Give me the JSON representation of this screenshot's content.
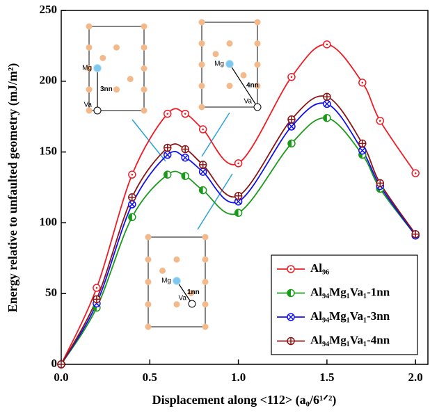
{
  "chart_data": {
    "type": "line",
    "x_label": "Displacement along <112> (a₀/6¹ᐟ²)",
    "y_label": "Energy relative to unfaulted geometry (mJ/m²)",
    "x": [
      0,
      0.2,
      0.4,
      0.6,
      0.7,
      0.8,
      1.0,
      1.3,
      1.5,
      1.7,
      1.8,
      2.0
    ],
    "series": [
      {
        "name": "Al₉₆",
        "color": "#ee1c25",
        "marker": "open-dot",
        "values": [
          0,
          54,
          134,
          177,
          177,
          166,
          142,
          203,
          226,
          199,
          172,
          135
        ]
      },
      {
        "name": "Al₉₄Mg₁Va₁-1nn",
        "color": "#1a9a1a",
        "marker": "half",
        "values": [
          0,
          40,
          104,
          134,
          133,
          123,
          107,
          156,
          174,
          148,
          124,
          91
        ]
      },
      {
        "name": "Al₉₄Mg₁Va₁-3nn",
        "color": "#1010ee",
        "marker": "cross",
        "values": [
          0,
          43,
          113,
          148,
          146,
          136,
          115,
          168,
          184,
          151,
          126,
          91
        ]
      },
      {
        "name": "Al₉₄Mg₁Va₁-4nn",
        "color": "#8b1414",
        "marker": "plus",
        "values": [
          0,
          46,
          118,
          153,
          152,
          141,
          119,
          173,
          189,
          156,
          128,
          92
        ]
      }
    ],
    "xlim": [
      0,
      2.07
    ],
    "ylim": [
      0,
      250
    ],
    "xticks": [
      {
        "value": 0,
        "label": "0.0"
      },
      {
        "value": 0.5,
        "label": "0.5"
      },
      {
        "value": 1,
        "label": "1.0"
      },
      {
        "value": 1.5,
        "label": "1.5"
      },
      {
        "value": 2,
        "label": "2.0"
      }
    ],
    "yticks": [
      0,
      50,
      100,
      150,
      200,
      250
    ],
    "legend": "lower-right",
    "annotations": [
      {
        "mg": "Mg",
        "va": "Va",
        "distance": "3nn"
      },
      {
        "mg": "Mg",
        "va": "Va",
        "distance": "4nn"
      },
      {
        "mg": "Mg",
        "va": "Va",
        "distance": "1nn"
      }
    ]
  }
}
